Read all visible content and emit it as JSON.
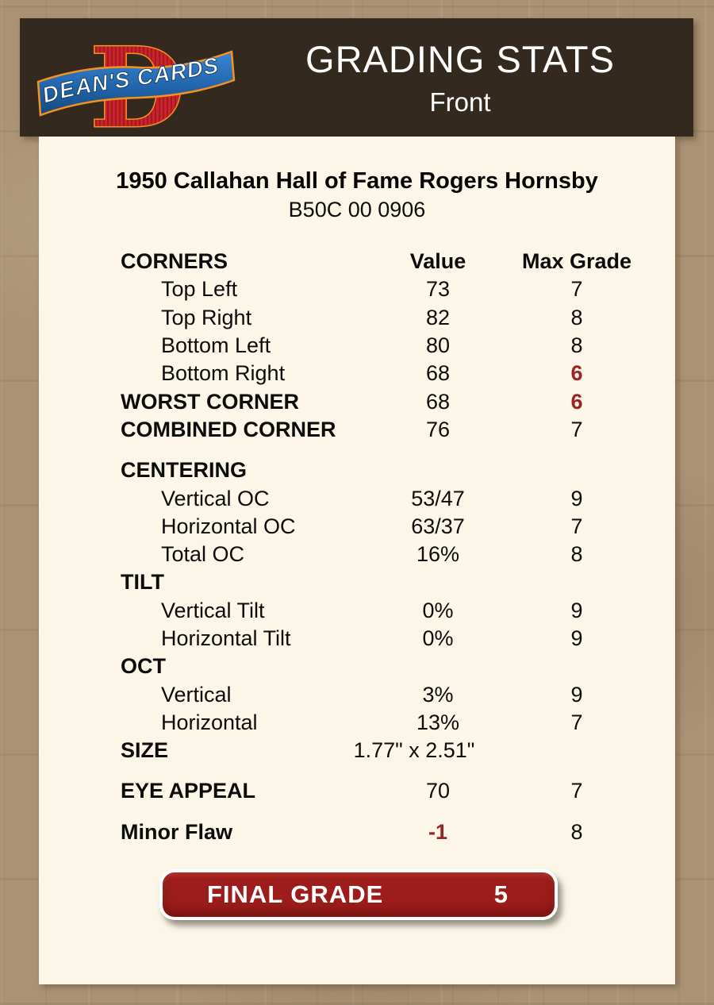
{
  "header": {
    "logo": {
      "letter": "D",
      "brand": "DEAN'S CARDS"
    },
    "title": "GRADING STATS",
    "subtitle": "Front"
  },
  "card": {
    "title": "1950 Callahan Hall of Fame Rogers Hornsby",
    "serial": "B50C 00 0906"
  },
  "table": {
    "columns": {
      "label": "CORNERS",
      "value": "Value",
      "max": "Max Grade"
    },
    "rows": [
      {
        "label": "CORNERS",
        "value": "Value",
        "max": "Max Grade",
        "head": true,
        "bold": true
      },
      {
        "label": "Top Left",
        "value": "73",
        "max": "7",
        "indent": true
      },
      {
        "label": "Top Right",
        "value": "82",
        "max": "8",
        "indent": true
      },
      {
        "label": "Bottom Left",
        "value": "80",
        "max": "8",
        "indent": true
      },
      {
        "label": "Bottom Right",
        "value": "68",
        "max": "6",
        "indent": true,
        "max_red": true
      },
      {
        "label": "WORST CORNER",
        "value": "68",
        "max": "6",
        "bold": true,
        "max_red": true
      },
      {
        "label": "COMBINED CORNER",
        "value": "76",
        "max": "7",
        "bold": true
      },
      {
        "label": "CENTERING",
        "value": "",
        "max": "",
        "bold": true,
        "gap": true
      },
      {
        "label": "Vertical OC",
        "value": "53/47",
        "max": "9",
        "indent": true
      },
      {
        "label": "Horizontal OC",
        "value": "63/37",
        "max": "7",
        "indent": true
      },
      {
        "label": "Total OC",
        "value": "16%",
        "max": "8",
        "indent": true
      },
      {
        "label": "TILT",
        "value": "",
        "max": "",
        "bold": true
      },
      {
        "label": "Vertical Tilt",
        "value": "0%",
        "max": "9",
        "indent": true
      },
      {
        "label": "Horizontal Tilt",
        "value": "0%",
        "max": "9",
        "indent": true
      },
      {
        "label": "OCT",
        "value": "",
        "max": "",
        "bold": true
      },
      {
        "label": "Vertical",
        "value": "3%",
        "max": "9",
        "indent": true
      },
      {
        "label": "Horizontal",
        "value": "13%",
        "max": "7",
        "indent": true
      },
      {
        "label": "SIZE",
        "value": "1.77\" x 2.51\"",
        "max": "",
        "bold": true,
        "wide_value": true
      },
      {
        "label": "EYE APPEAL",
        "value": "70",
        "max": "7",
        "bold": true,
        "gap": true
      },
      {
        "label": "Minor Flaw",
        "value": "-1",
        "max": "8",
        "bold": true,
        "gap": true,
        "value_red": true
      }
    ]
  },
  "final_grade": {
    "label": "FINAL GRADE",
    "value": "5"
  },
  "colors": {
    "page_background": "#ab9275",
    "header_background": "#33291f",
    "panel_background": "#fbf6e7",
    "accent_red": "#9a2323",
    "final_grade_red": "#9c1d1b",
    "logo_red": "#c8242c",
    "logo_orange": "#f6921e",
    "logo_blue_dark": "#15497e",
    "logo_blue_light": "#3a86d4",
    "text_color": "#0c0c0c",
    "header_text": "#ffffff"
  }
}
